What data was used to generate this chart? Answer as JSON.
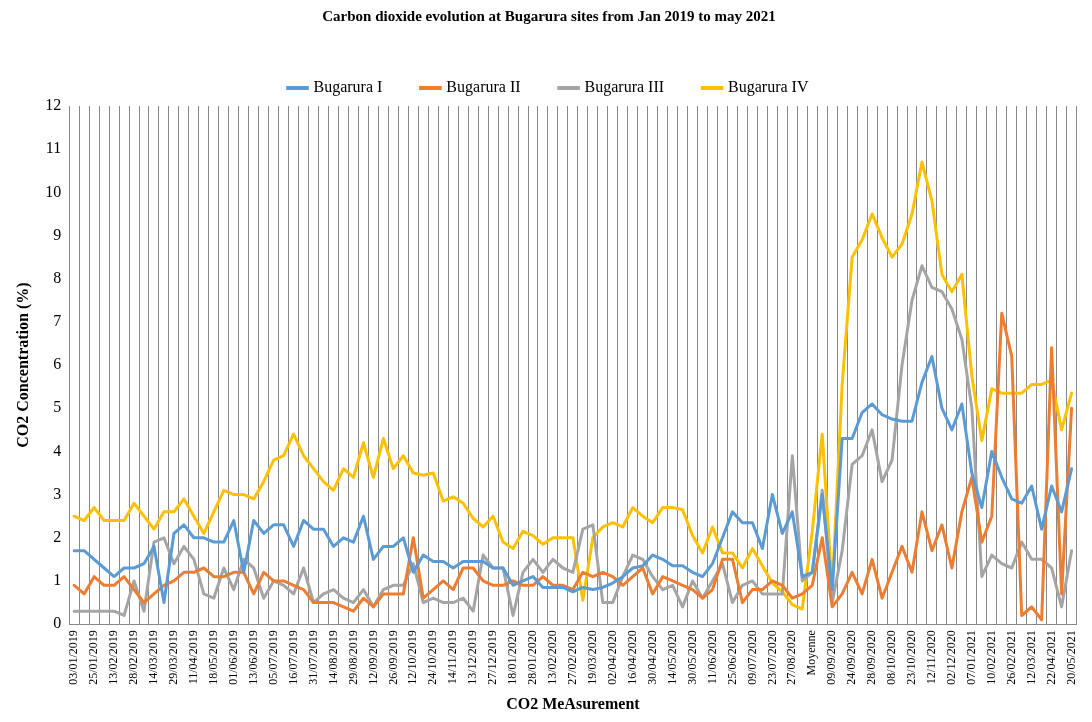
{
  "chart_data": {
    "type": "line",
    "title": "Carbon dioxide evolution at Bugarura sites from Jan 2019 to may 2021",
    "xlabel": "CO2 MeAsurement",
    "ylabel": "CO2 Concentration (%)",
    "categories": [
      "03/01/2019",
      null,
      "25/01/2019",
      null,
      "13/02/2019",
      null,
      "28/02/2019",
      null,
      "14/03/2019",
      null,
      "29/03/2019",
      null,
      "11/04/2019",
      null,
      "18/05/2019",
      null,
      "01/06/2019",
      null,
      "13/06/2019",
      null,
      "05/07/2019",
      null,
      "16/07/2019",
      null,
      "31/07/2019",
      null,
      "14/08/2019",
      null,
      "29/08/2019",
      null,
      "12/09/2019",
      null,
      "26/09/2019",
      null,
      "12/10/2019",
      null,
      "24/10/2019",
      null,
      "14/11/2019",
      null,
      "13/12/2019",
      null,
      "27/12/2019",
      null,
      "18/01/2020",
      null,
      "28/01/2020",
      null,
      "13/02/2020",
      null,
      "27/02/2020",
      null,
      "19/03/2020",
      null,
      "02/04/2020",
      null,
      "16/04/2020",
      null,
      "30/04/2020",
      null,
      "14/05/2020",
      null,
      "30/05/2020",
      null,
      "11/06/2020",
      null,
      "25/06/2020",
      null,
      "09/07/2020",
      null,
      "23/07/2020",
      null,
      "27/08/2020",
      null,
      "Moyenne",
      null,
      "09/09/2020",
      null,
      "24/09/2020",
      null,
      "28/09/2020",
      null,
      "08/10/2020",
      null,
      "23/10/2020",
      null,
      "12/11/2020",
      null,
      "02/12/2020",
      null,
      "07/01/2021",
      null,
      "10/02/2021",
      null,
      "26/02/2021",
      null,
      "12/03/2021",
      null,
      "22/04/2021",
      null,
      "20/05/2021"
    ],
    "series": [
      {
        "name": "Bugarura I",
        "color": "#5b9bd5",
        "values": [
          1.7,
          1.7,
          1.5,
          1.3,
          1.1,
          1.3,
          1.3,
          1.4,
          1.8,
          0.5,
          2.1,
          2.3,
          2.0,
          2.0,
          1.9,
          1.9,
          2.4,
          1.2,
          2.4,
          2.1,
          2.3,
          2.3,
          1.8,
          2.4,
          2.2,
          2.2,
          1.8,
          2.0,
          1.9,
          2.5,
          1.5,
          1.8,
          1.8,
          2.0,
          1.2,
          1.6,
          1.45,
          1.45,
          1.3,
          1.45,
          1.45,
          1.45,
          1.3,
          1.3,
          0.9,
          1.0,
          1.1,
          0.85,
          0.85,
          0.85,
          0.75,
          0.85,
          0.8,
          0.85,
          0.95,
          1.1,
          1.3,
          1.35,
          1.6,
          1.5,
          1.35,
          1.35,
          1.2,
          1.1,
          1.4,
          2.0,
          2.6,
          2.35,
          2.35,
          1.75,
          3.0,
          2.1,
          2.6,
          1.1,
          1.2,
          3.0,
          0.8,
          4.3,
          4.3,
          4.9,
          5.1,
          4.85,
          4.75,
          4.7,
          4.7,
          5.6,
          6.2,
          5.0,
          4.5,
          5.1,
          3.5,
          2.7,
          4.0,
          3.4,
          2.9,
          2.8,
          3.2,
          2.2,
          3.2,
          2.6,
          3.6
        ]
      },
      {
        "name": "Bugarura II",
        "color": "#ed7d31",
        "values": [
          0.9,
          0.7,
          1.1,
          0.9,
          0.9,
          1.1,
          0.8,
          0.5,
          0.7,
          0.9,
          1.0,
          1.2,
          1.2,
          1.3,
          1.1,
          1.1,
          1.2,
          1.2,
          0.7,
          1.2,
          1.0,
          1.0,
          0.9,
          0.8,
          0.5,
          0.5,
          0.5,
          0.4,
          0.3,
          0.6,
          0.4,
          0.7,
          0.7,
          0.7,
          2.0,
          0.6,
          0.8,
          1.0,
          0.8,
          1.3,
          1.3,
          1.0,
          0.9,
          0.9,
          1.0,
          0.9,
          0.9,
          1.1,
          0.9,
          0.9,
          0.8,
          1.2,
          1.1,
          1.2,
          1.1,
          0.9,
          1.1,
          1.3,
          0.7,
          1.1,
          1.0,
          0.9,
          0.8,
          0.6,
          0.8,
          1.5,
          1.5,
          0.5,
          0.8,
          0.8,
          1.0,
          0.9,
          0.6,
          0.7,
          0.9,
          2.0,
          0.4,
          0.7,
          1.2,
          0.7,
          1.5,
          0.6,
          1.2,
          1.8,
          1.2,
          2.6,
          1.7,
          2.3,
          1.3,
          2.6,
          3.4,
          1.9,
          2.5,
          7.2,
          6.2,
          0.2,
          0.4,
          0.1,
          6.4,
          0.7,
          5.0
        ]
      },
      {
        "name": "Bugarura III",
        "color": "#a5a5a5",
        "values": [
          0.3,
          0.3,
          0.3,
          0.3,
          0.3,
          0.2,
          1.0,
          0.3,
          1.9,
          2.0,
          1.4,
          1.8,
          1.5,
          0.7,
          0.6,
          1.3,
          0.8,
          1.5,
          1.3,
          0.6,
          1.0,
          0.9,
          0.7,
          1.3,
          0.5,
          0.7,
          0.8,
          0.6,
          0.5,
          0.8,
          0.4,
          0.8,
          0.9,
          0.9,
          1.4,
          0.5,
          0.6,
          0.5,
          0.5,
          0.6,
          0.3,
          1.6,
          1.3,
          1.3,
          0.2,
          1.2,
          1.5,
          1.2,
          1.5,
          1.3,
          1.2,
          2.2,
          2.3,
          0.5,
          0.5,
          1.1,
          1.6,
          1.5,
          1.1,
          0.8,
          0.9,
          0.4,
          1.0,
          0.6,
          1.0,
          1.4,
          0.5,
          0.9,
          1.0,
          0.7,
          0.7,
          0.7,
          3.9,
          1.0,
          1.2,
          3.1,
          0.5,
          1.7,
          3.7,
          3.9,
          4.5,
          3.3,
          3.8,
          6.0,
          7.5,
          8.3,
          7.8,
          7.7,
          7.3,
          6.6,
          5.0,
          1.1,
          1.6,
          1.4,
          1.3,
          1.9,
          1.5,
          1.5,
          1.3,
          0.4,
          1.7
        ]
      },
      {
        "name": "Bugarura IV",
        "color": "#ffc000",
        "values": [
          2.5,
          2.4,
          2.7,
          2.4,
          2.4,
          2.4,
          2.8,
          2.5,
          2.2,
          2.6,
          2.6,
          2.9,
          2.5,
          2.1,
          2.6,
          3.1,
          3.0,
          3.0,
          2.9,
          3.3,
          3.8,
          3.9,
          4.4,
          3.9,
          3.6,
          3.3,
          3.1,
          3.6,
          3.4,
          4.2,
          3.4,
          4.3,
          3.6,
          3.9,
          3.5,
          3.45,
          3.5,
          2.85,
          2.95,
          2.8,
          2.45,
          2.25,
          2.5,
          1.9,
          1.75,
          2.15,
          2.05,
          1.85,
          2.0,
          2.0,
          2.0,
          0.55,
          2.0,
          2.25,
          2.35,
          2.25,
          2.7,
          2.5,
          2.35,
          2.7,
          2.7,
          2.65,
          2.05,
          1.65,
          2.25,
          1.65,
          1.65,
          1.3,
          1.75,
          1.35,
          0.95,
          0.75,
          0.45,
          0.35,
          2.15,
          4.4,
          0.8,
          5.55,
          8.5,
          8.9,
          9.5,
          8.95,
          8.5,
          8.8,
          9.5,
          10.7,
          9.8,
          8.1,
          7.7,
          8.1,
          5.75,
          4.25,
          5.45,
          5.35,
          5.35,
          5.35,
          5.55,
          5.55,
          5.65,
          4.5,
          5.35
        ]
      }
    ],
    "ylim": [
      0,
      12
    ],
    "yticks": [
      0,
      1,
      2,
      3,
      4,
      5,
      6,
      7,
      8,
      9,
      10,
      11,
      12
    ],
    "grid": "x",
    "legend": "top",
    "marker": "none",
    "line_style": "solid"
  }
}
